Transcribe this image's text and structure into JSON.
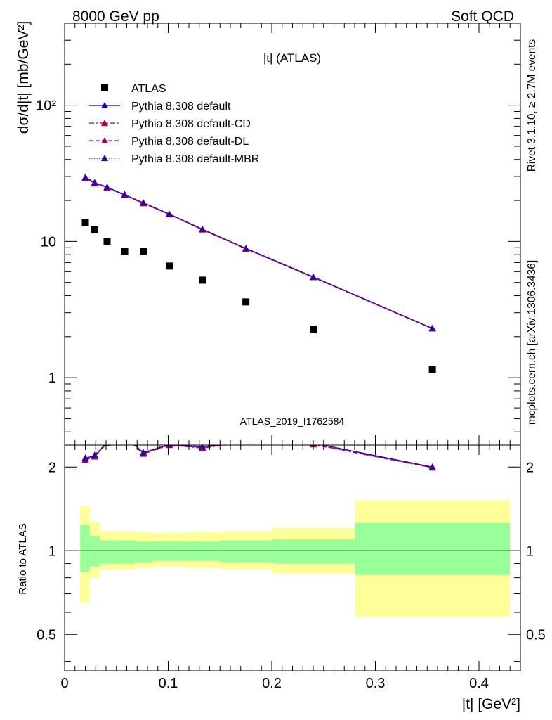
{
  "header": {
    "left_label": "8000 GeV pp",
    "right_label": "Soft QCD"
  },
  "side_labels": {
    "rivet": "Rivet 3.1.10, ≥ 2.7M events",
    "mcplots": "mcplots.cern.ch [arXiv:1306.3436]"
  },
  "colors": {
    "atlas": "#000000",
    "default": "#0000cc",
    "default_cd": "#aa0044",
    "default_dl": "#aa0055",
    "default_mbr": "#3300aa",
    "band_green": "#99ff99",
    "band_yellow": "#ffff99"
  },
  "chart_data": [
    {
      "type": "scatter",
      "title": "|t| (ATLAS)",
      "watermark": "ATLAS_2019_I1762584",
      "ylabel": "dσ/d|t| [mb/GeV²]",
      "yscale": "log",
      "ylim": [
        0.32,
        400
      ],
      "xlim": [
        0,
        0.44
      ],
      "yticks": [
        {
          "value": 1,
          "label": "1"
        },
        {
          "value": 10,
          "label": "10"
        },
        {
          "value": 100,
          "label": "10²"
        }
      ],
      "legend_position": "top-left",
      "series": [
        {
          "name": "ATLAS",
          "style": "square",
          "x": [
            0.02,
            0.029,
            0.041,
            0.058,
            0.076,
            0.101,
            0.133,
            0.175,
            0.24,
            0.355
          ],
          "y": [
            13.7,
            12.2,
            10.0,
            8.5,
            8.5,
            6.6,
            5.2,
            3.6,
            2.25,
            1.15
          ]
        },
        {
          "name": "Pythia 8.308 default",
          "style": "solid",
          "x": [
            0.02,
            0.029,
            0.041,
            0.058,
            0.076,
            0.101,
            0.133,
            0.175,
            0.24,
            0.355
          ],
          "y": [
            29.5,
            27.0,
            25.0,
            22.0,
            19.2,
            15.9,
            12.3,
            8.9,
            5.5,
            2.3
          ]
        },
        {
          "name": "Pythia 8.308 default-CD",
          "style": "dashdot",
          "x": [
            0.02,
            0.029,
            0.041,
            0.058,
            0.076,
            0.101,
            0.133,
            0.175,
            0.24,
            0.355
          ],
          "y": [
            29.2,
            26.7,
            24.8,
            21.8,
            19.0,
            15.8,
            12.2,
            8.8,
            5.45,
            2.29
          ]
        },
        {
          "name": "Pythia 8.308 default-DL",
          "style": "dashed",
          "x": [
            0.02,
            0.029,
            0.041,
            0.058,
            0.076,
            0.101,
            0.133,
            0.175,
            0.24,
            0.355
          ],
          "y": [
            29.3,
            26.8,
            24.9,
            21.9,
            19.1,
            15.8,
            12.2,
            8.85,
            5.45,
            2.29
          ]
        },
        {
          "name": "Pythia 8.308 default-MBR",
          "style": "dotted",
          "x": [
            0.02,
            0.029,
            0.041,
            0.058,
            0.076,
            0.101,
            0.133,
            0.175,
            0.24,
            0.355
          ],
          "y": [
            29.6,
            27.1,
            25.1,
            22.1,
            19.3,
            15.9,
            12.3,
            8.9,
            5.5,
            2.3
          ]
        }
      ]
    },
    {
      "type": "line",
      "ylabel": "Ratio to ATLAS",
      "xlabel": "|t| [GeV²]",
      "yscale": "log",
      "ylim": [
        0.37,
        2.4
      ],
      "xlim": [
        0,
        0.44
      ],
      "reference": 1,
      "yticks": [
        {
          "value": 0.5,
          "label": "0.5"
        },
        {
          "value": 1,
          "label": "1"
        },
        {
          "value": 2,
          "label": "2"
        }
      ],
      "xticks": [
        {
          "value": 0,
          "label": "0"
        },
        {
          "value": 0.1,
          "label": "0.1"
        },
        {
          "value": 0.2,
          "label": "0.2"
        },
        {
          "value": 0.3,
          "label": "0.3"
        },
        {
          "value": 0.4,
          "label": "0.4"
        }
      ],
      "bins": [
        {
          "lo": 0.015,
          "hi": 0.024,
          "y_lo": 0.65,
          "y_hi": 1.45,
          "g_lo": 0.84,
          "g_hi": 1.24
        },
        {
          "lo": 0.024,
          "hi": 0.034,
          "y_lo": 0.8,
          "y_hi": 1.27,
          "g_lo": 0.88,
          "g_hi": 1.13
        },
        {
          "lo": 0.034,
          "hi": 0.05,
          "y_lo": 0.86,
          "y_hi": 1.18,
          "g_lo": 0.9,
          "g_hi": 1.09
        },
        {
          "lo": 0.05,
          "hi": 0.068,
          "y_lo": 0.86,
          "y_hi": 1.18,
          "g_lo": 0.9,
          "g_hi": 1.09
        },
        {
          "lo": 0.068,
          "hi": 0.085,
          "y_lo": 0.87,
          "y_hi": 1.17,
          "g_lo": 0.91,
          "g_hi": 1.08
        },
        {
          "lo": 0.085,
          "hi": 0.117,
          "y_lo": 0.88,
          "y_hi": 1.16,
          "g_lo": 0.92,
          "g_hi": 1.08
        },
        {
          "lo": 0.117,
          "hi": 0.15,
          "y_lo": 0.87,
          "y_hi": 1.17,
          "g_lo": 0.92,
          "g_hi": 1.08
        },
        {
          "lo": 0.15,
          "hi": 0.2,
          "y_lo": 0.86,
          "y_hi": 1.18,
          "g_lo": 0.91,
          "g_hi": 1.09
        },
        {
          "lo": 0.2,
          "hi": 0.28,
          "y_lo": 0.83,
          "y_hi": 1.21,
          "g_lo": 0.9,
          "g_hi": 1.1
        },
        {
          "lo": 0.28,
          "hi": 0.43,
          "y_lo": 0.58,
          "y_hi": 1.52,
          "g_lo": 0.82,
          "g_hi": 1.26
        }
      ],
      "series": [
        {
          "name": "Pythia 8.308 default",
          "style": "solid",
          "x": [
            0.02,
            0.029,
            0.041,
            0.058,
            0.076,
            0.101,
            0.133,
            0.175,
            0.24,
            0.355
          ],
          "y": [
            2.15,
            2.2,
            2.45,
            2.6,
            2.25,
            2.41,
            2.36,
            2.48,
            2.44,
            2.0
          ]
        },
        {
          "name": "Pythia 8.308 default-CD",
          "style": "dashdot",
          "x": [
            0.02,
            0.029,
            0.041,
            0.058,
            0.076,
            0.101,
            0.133,
            0.175,
            0.24,
            0.355
          ],
          "y": [
            2.12,
            2.18,
            2.44,
            2.57,
            2.23,
            2.4,
            2.34,
            2.46,
            2.41,
            1.99
          ]
        },
        {
          "name": "Pythia 8.308 default-DL",
          "style": "dashed",
          "x": [
            0.02,
            0.029,
            0.041,
            0.058,
            0.076,
            0.101,
            0.133,
            0.175,
            0.24,
            0.355
          ],
          "y": [
            2.13,
            2.19,
            2.44,
            2.58,
            2.24,
            2.4,
            2.35,
            2.47,
            2.42,
            1.99
          ]
        },
        {
          "name": "Pythia 8.308 default-MBR",
          "style": "dotted",
          "x": [
            0.02,
            0.029,
            0.041,
            0.058,
            0.076,
            0.101,
            0.133,
            0.175,
            0.24,
            0.355
          ],
          "y": [
            2.16,
            2.21,
            2.46,
            2.6,
            2.26,
            2.42,
            2.37,
            2.49,
            2.44,
            2.0
          ]
        }
      ]
    }
  ]
}
